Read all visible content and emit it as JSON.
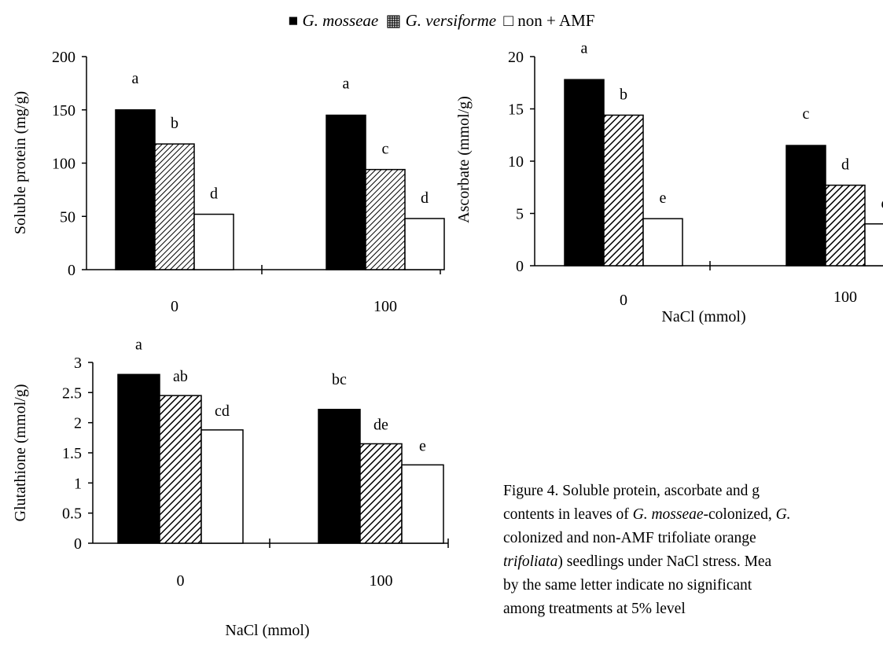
{
  "legend": {
    "series1": "G. mosseae",
    "series2": "G. versiforme",
    "series3": "non + AMF",
    "symbol1": "■",
    "symbol2": "▦",
    "symbol3": "□"
  },
  "caption": {
    "line1": "Figure 4. Soluble protein, ascorbate and g",
    "line2_a": "contents in leaves of ",
    "line2_b": "G. mosseae",
    "line2_c": "-colonized, ",
    "line2_d": "G.",
    "line3": "colonized and non-AMF trifoliate orange",
    "line4_a": "trifoliata",
    "line4_b": ") seedlings under NaCl stress. Mea",
    "line5": "by the same letter indicate no significant",
    "line6": "among treatments at 5% level"
  },
  "colors": {
    "series1": "#000000",
    "series2": "hatch-diagonal",
    "series3": "#ffffff"
  },
  "chart_data": [
    {
      "type": "bar",
      "ylabel": "Soluble protein (mg/g)",
      "xlabel": "",
      "categories": [
        "0",
        "100"
      ],
      "ylim": [
        0,
        200
      ],
      "yticks": [
        "0",
        "50",
        "100",
        "150",
        "200"
      ],
      "series": [
        {
          "name": "G. mosseae",
          "values": [
            150,
            145
          ],
          "letters": [
            "a",
            "a"
          ]
        },
        {
          "name": "G. versiforme",
          "values": [
            118,
            94
          ],
          "letters": [
            "b",
            "c"
          ]
        },
        {
          "name": "non + AMF",
          "values": [
            52,
            48
          ],
          "letters": [
            "d",
            "d"
          ]
        }
      ],
      "grid": false
    },
    {
      "type": "bar",
      "ylabel": "Ascorbate (mmol/g)",
      "xlabel": "NaCl (mmol)",
      "categories": [
        "0",
        "100"
      ],
      "ylim": [
        0,
        20
      ],
      "yticks": [
        "0",
        "5",
        "10",
        "15",
        "20"
      ],
      "series": [
        {
          "name": "G. mosseae",
          "values": [
            17.8,
            11.5
          ],
          "letters": [
            "a",
            "c"
          ]
        },
        {
          "name": "G. versiforme",
          "values": [
            14.4,
            7.7
          ],
          "letters": [
            "b",
            "d"
          ]
        },
        {
          "name": "non + AMF",
          "values": [
            4.5,
            4.0
          ],
          "letters": [
            "e",
            "e"
          ]
        }
      ],
      "grid": false
    },
    {
      "type": "bar",
      "ylabel": "Glutathione (mmol/g)",
      "xlabel": "NaCl (mmol)",
      "categories": [
        "0",
        "100"
      ],
      "ylim": [
        0,
        3
      ],
      "yticks": [
        "0",
        "0.5",
        "1",
        "1.5",
        "2",
        "2.5",
        "3"
      ],
      "series": [
        {
          "name": "G. mosseae",
          "values": [
            2.8,
            2.22
          ],
          "letters": [
            "a",
            "bc"
          ]
        },
        {
          "name": "G. versiforme",
          "values": [
            2.45,
            1.65
          ],
          "letters": [
            "ab",
            "de"
          ]
        },
        {
          "name": "non + AMF",
          "values": [
            1.88,
            1.3
          ],
          "letters": [
            "cd",
            "e"
          ]
        }
      ],
      "grid": false
    }
  ]
}
